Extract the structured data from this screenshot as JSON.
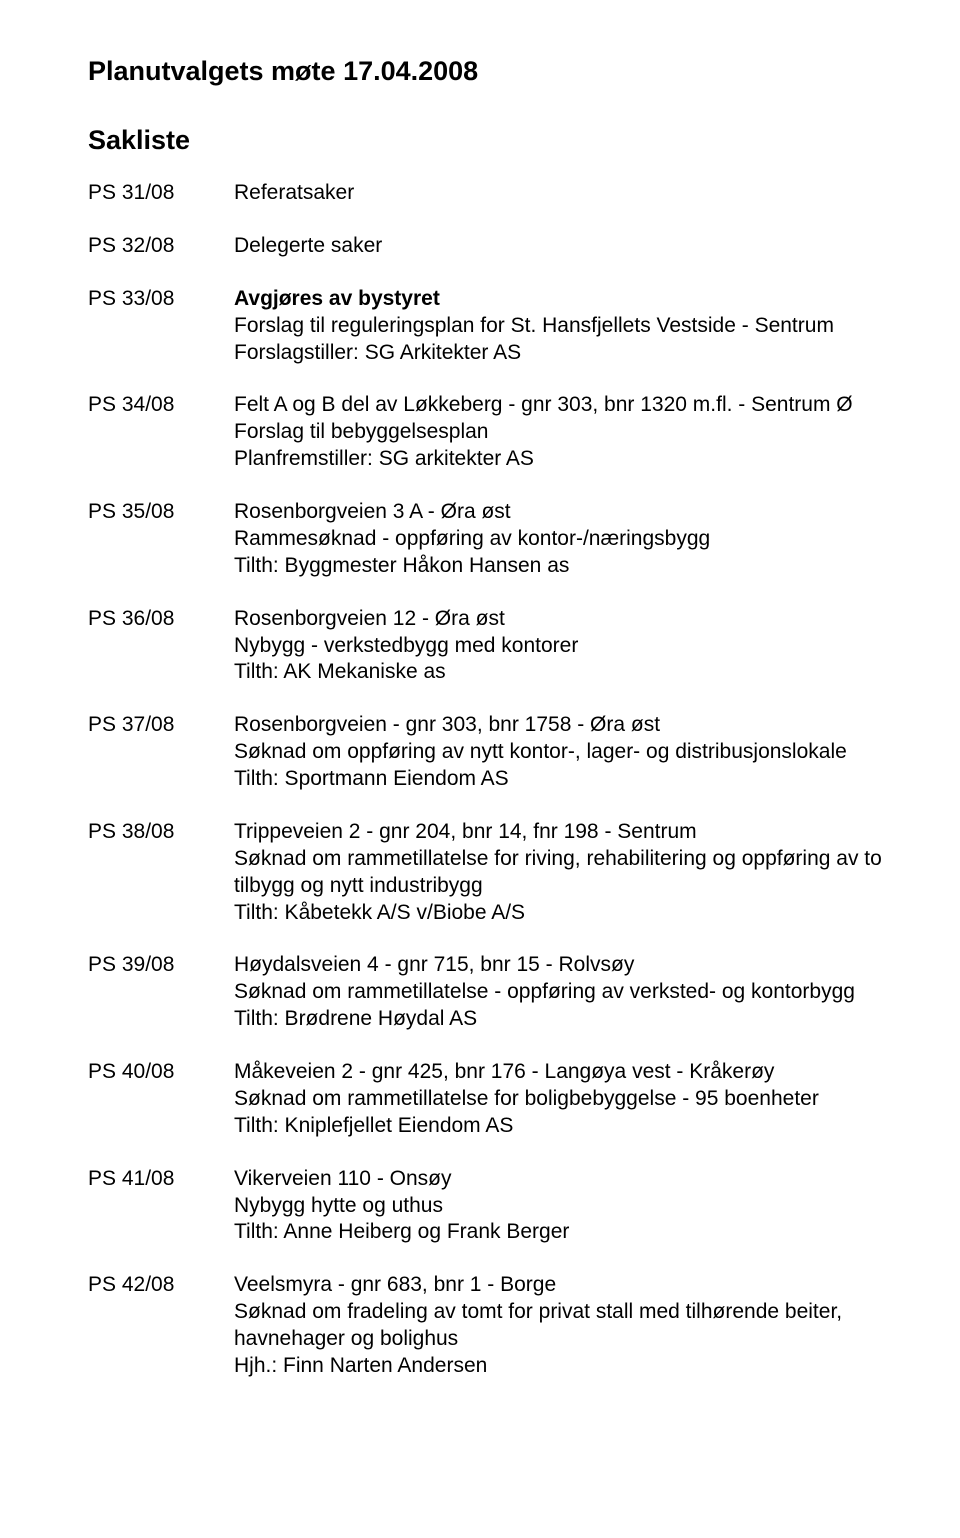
{
  "title": "Planutvalgets møte 17.04.2008",
  "subheading": "Sakliste",
  "items": [
    {
      "code": "PS 31/08",
      "lines": [
        {
          "text": "Referatsaker",
          "bold": false
        }
      ]
    },
    {
      "code": "PS 32/08",
      "lines": [
        {
          "text": "Delegerte saker",
          "bold": false
        }
      ]
    },
    {
      "code": "PS 33/08",
      "lines": [
        {
          "text": "Avgjøres av bystyret",
          "bold": true
        },
        {
          "text": "Forslag til reguleringsplan for St. Hansfjellets Vestside - Sentrum",
          "bold": false
        },
        {
          "text": "Forslagstiller: SG Arkitekter AS",
          "bold": false
        }
      ]
    },
    {
      "code": "PS 34/08",
      "lines": [
        {
          "text": "Felt A og B del av Løkkeberg - gnr 303, bnr 1320 m.fl. - Sentrum Ø",
          "bold": false
        },
        {
          "text": "Forslag til bebyggelsesplan",
          "bold": false
        },
        {
          "text": " Planfremstiller: SG arkitekter AS",
          "bold": false
        }
      ]
    },
    {
      "code": "PS 35/08",
      "lines": [
        {
          "text": "Rosenborgveien 3 A - Øra øst",
          "bold": false
        },
        {
          "text": "Rammesøknad - oppføring av kontor-/næringsbygg",
          "bold": false
        },
        {
          "text": "Tilth: Byggmester Håkon Hansen as",
          "bold": false
        }
      ]
    },
    {
      "code": "PS 36/08",
      "lines": [
        {
          "text": "Rosenborgveien 12 - Øra øst",
          "bold": false
        },
        {
          "text": "Nybygg - verkstedbygg med kontorer",
          "bold": false
        },
        {
          "text": "Tilth: AK Mekaniske as",
          "bold": false
        }
      ]
    },
    {
      "code": "PS 37/08",
      "lines": [
        {
          "text": "Rosenborgveien - gnr 303, bnr 1758 - Øra øst",
          "bold": false
        },
        {
          "text": "Søknad om oppføring av nytt kontor-, lager- og distribusjonslokale",
          "bold": false
        },
        {
          "text": "Tilth: Sportmann Eiendom AS",
          "bold": false
        }
      ]
    },
    {
      "code": "PS 38/08",
      "lines": [
        {
          "text": "Trippeveien 2 - gnr 204, bnr 14, fnr 198 - Sentrum",
          "bold": false
        },
        {
          "text": "Søknad om rammetillatelse for riving, rehabilitering og oppføring av to tilbygg og nytt industribygg",
          "bold": false
        },
        {
          "text": "Tilth: Kåbetekk A/S v/Biobe A/S",
          "bold": false
        }
      ]
    },
    {
      "code": "PS 39/08",
      "lines": [
        {
          "text": "Høydalsveien 4 - gnr 715, bnr 15 - Rolvsøy",
          "bold": false
        },
        {
          "text": "Søknad om rammetillatelse - oppføring av verksted- og kontorbygg",
          "bold": false
        },
        {
          "text": "Tilth: Brødrene Høydal AS",
          "bold": false
        }
      ]
    },
    {
      "code": "PS 40/08",
      "lines": [
        {
          "text": "Måkeveien 2 - gnr 425, bnr 176 - Langøya vest - Kråkerøy",
          "bold": false
        },
        {
          "text": "Søknad om rammetillatelse for boligbebyggelse - 95 boenheter",
          "bold": false
        },
        {
          "text": "Tilth: Kniplefjellet Eiendom AS",
          "bold": false
        }
      ]
    },
    {
      "code": "PS 41/08",
      "lines": [
        {
          "text": "Vikerveien 110 - Onsøy",
          "bold": false
        },
        {
          "text": "Nybygg hytte og uthus",
          "bold": false
        },
        {
          "text": "Tilth: Anne Heiberg og Frank Berger",
          "bold": false
        }
      ]
    },
    {
      "code": "PS 42/08",
      "lines": [
        {
          "text": "Veelsmyra - gnr 683, bnr 1 - Borge",
          "bold": false
        },
        {
          "text": "Søknad om fradeling av tomt for privat stall med tilhørende beiter, havnehager og bolighus",
          "bold": false
        },
        {
          "text": "Hjh.: Finn Narten Andersen",
          "bold": false
        }
      ]
    }
  ]
}
